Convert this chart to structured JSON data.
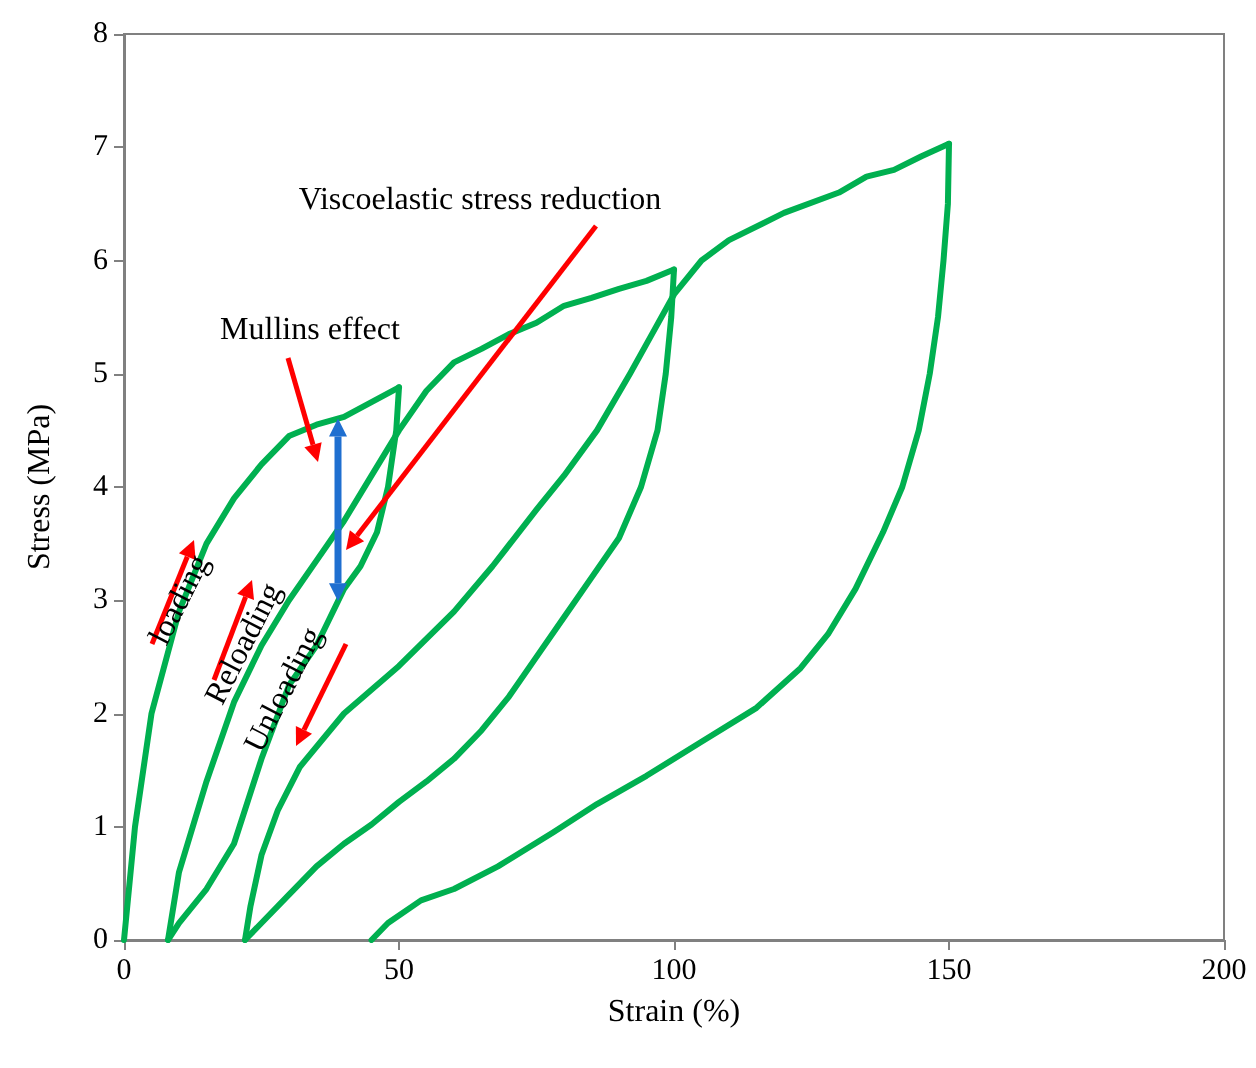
{
  "chart_data": {
    "type": "line",
    "xlabel": "Strain (%)",
    "ylabel": "Stress (MPa)",
    "xlim": [
      0,
      200
    ],
    "xticks": [
      0,
      50,
      100,
      150,
      200
    ],
    "ylim": [
      0,
      8
    ],
    "yticks": [
      0,
      1,
      2,
      3,
      4,
      5,
      6,
      7,
      8
    ],
    "grid": false,
    "marker": "none",
    "line_style": "solid",
    "series": [
      {
        "color": "#00b050",
        "x": [
          0,
          2,
          5,
          10,
          15,
          20,
          25,
          30,
          35,
          40,
          45,
          50
        ],
        "values": [
          0,
          1,
          2,
          2.9,
          3.5,
          3.9,
          4.2,
          4.45,
          4.55,
          4.62,
          4.75,
          4.88
        ]
      },
      {
        "color": "#00b050",
        "x": [
          50,
          49.5,
          48,
          46,
          43,
          40,
          35,
          30,
          25,
          20,
          15,
          10,
          8
        ],
        "values": [
          4.88,
          4.5,
          4.0,
          3.6,
          3.3,
          3.1,
          2.6,
          2.25,
          1.6,
          0.85,
          0.45,
          0.15,
          0
        ]
      },
      {
        "color": "#00b050",
        "x": [
          8,
          10,
          15,
          20,
          25,
          30,
          35,
          40,
          45,
          50,
          55,
          60,
          65,
          70,
          75,
          80,
          85,
          90,
          95,
          100
        ],
        "values": [
          0,
          0.6,
          1.4,
          2.1,
          2.6,
          3.0,
          3.35,
          3.7,
          4.1,
          4.5,
          4.85,
          5.1,
          5.22,
          5.35,
          5.45,
          5.6,
          5.67,
          5.75,
          5.82,
          5.92
        ]
      },
      {
        "color": "#00b050",
        "x": [
          100,
          99.5,
          98.5,
          97,
          94,
          90,
          85,
          80,
          75,
          70,
          65,
          60,
          55,
          50,
          45,
          40,
          35,
          30,
          25,
          22
        ],
        "values": [
          5.92,
          5.5,
          5.0,
          4.5,
          4.0,
          3.55,
          3.2,
          2.85,
          2.5,
          2.15,
          1.85,
          1.6,
          1.4,
          1.22,
          1.02,
          0.85,
          0.65,
          0.4,
          0.15,
          0
        ]
      },
      {
        "color": "#00b050",
        "x": [
          22,
          23,
          25,
          28,
          32,
          40,
          50,
          60,
          67,
          75,
          80,
          86,
          92,
          96,
          100,
          105,
          110,
          120,
          130,
          135,
          140,
          145,
          150
        ],
        "values": [
          0,
          0.3,
          0.75,
          1.15,
          1.53,
          2.0,
          2.42,
          2.9,
          3.3,
          3.8,
          4.1,
          4.5,
          5.0,
          5.35,
          5.7,
          6.0,
          6.18,
          6.42,
          6.6,
          6.74,
          6.8,
          6.92,
          7.03
        ]
      },
      {
        "color": "#00b050",
        "x": [
          150,
          149.8,
          149,
          148,
          146.5,
          144.5,
          141.5,
          138,
          133,
          128,
          123,
          115,
          105,
          95,
          86,
          78,
          68,
          60,
          54,
          48,
          45
        ],
        "values": [
          7.03,
          6.5,
          6.0,
          5.5,
          5.0,
          4.5,
          4.0,
          3.6,
          3.1,
          2.7,
          2.4,
          2.05,
          1.75,
          1.45,
          1.2,
          0.95,
          0.65,
          0.45,
          0.35,
          0.15,
          0
        ]
      }
    ],
    "annotations": [
      "Viscoelastic stress reduction",
      "Mullins effect",
      "loading",
      "Reloading",
      "Unloading"
    ]
  }
}
